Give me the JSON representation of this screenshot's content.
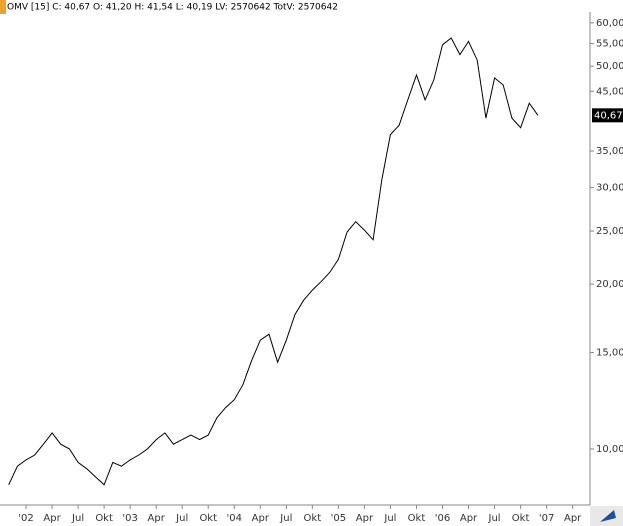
{
  "chart_data": {
    "type": "line",
    "title": "OMV [15] C: 40,67 O: 41,20 H: 41,54 L: 40,19 LV: 2570642 TotV: 2570642",
    "x": [
      "2001-11",
      "2001-12",
      "2002-01",
      "2002-02",
      "2002-03",
      "2002-04",
      "2002-05",
      "2002-06",
      "2002-07",
      "2002-08",
      "2002-09",
      "2002-10",
      "2002-11",
      "2002-12",
      "2003-01",
      "2003-02",
      "2003-03",
      "2003-04",
      "2003-05",
      "2003-06",
      "2003-07",
      "2003-08",
      "2003-09",
      "2003-10",
      "2003-11",
      "2003-12",
      "2004-01",
      "2004-02",
      "2004-03",
      "2004-04",
      "2004-05",
      "2004-06",
      "2004-07",
      "2004-08",
      "2004-09",
      "2004-10",
      "2004-11",
      "2004-12",
      "2005-01",
      "2005-02",
      "2005-03",
      "2005-04",
      "2005-05",
      "2005-06",
      "2005-07",
      "2005-08",
      "2005-09",
      "2005-10",
      "2005-11",
      "2005-12",
      "2006-01",
      "2006-02",
      "2006-03",
      "2006-04",
      "2006-05",
      "2006-06",
      "2006-07",
      "2006-08",
      "2006-09",
      "2006-10",
      "2006-11",
      "2006-12"
    ],
    "values": [
      8.6,
      9.3,
      9.55,
      9.75,
      10.2,
      10.7,
      10.2,
      10.0,
      9.45,
      9.2,
      8.9,
      8.6,
      9.45,
      9.3,
      9.55,
      9.75,
      10.0,
      10.4,
      10.7,
      10.2,
      10.4,
      10.6,
      10.4,
      10.6,
      11.4,
      11.9,
      12.3,
      13.1,
      14.5,
      15.8,
      16.2,
      14.4,
      15.8,
      17.6,
      18.7,
      19.5,
      20.2,
      21.0,
      22.2,
      24.9,
      26.0,
      25.1,
      24.1,
      31.0,
      37.5,
      39.0,
      43.4,
      48.2,
      43.4,
      47.2,
      54.7,
      56.3,
      52.5,
      55.5,
      51.3,
      40.2,
      47.6,
      46.2,
      40.2,
      38.6,
      42.8,
      40.67
    ],
    "color": "#000000",
    "log_scale": true,
    "grid": false,
    "ylim": [
      7.9,
      62.8
    ],
    "yticks": [
      {
        "value": 10,
        "label": "10,00"
      },
      {
        "value": 15,
        "label": "15,00"
      },
      {
        "value": 20,
        "label": "20,00"
      },
      {
        "value": 25,
        "label": "25,00"
      },
      {
        "value": 30,
        "label": "30,00"
      },
      {
        "value": 35,
        "label": "35,00"
      },
      {
        "value": 45,
        "label": "45,00"
      },
      {
        "value": 50,
        "label": "50,00"
      },
      {
        "value": 55,
        "label": "55,00"
      },
      {
        "value": 60,
        "label": "60,00"
      }
    ],
    "last_price": {
      "value": 40.67,
      "label": "40,67"
    },
    "xlim": [
      "2001-10",
      "2007-06"
    ],
    "xticks": [
      {
        "value": "2002-01",
        "label": "'02"
      },
      {
        "value": "2002-04",
        "label": "Apr"
      },
      {
        "value": "2002-07",
        "label": "Jul"
      },
      {
        "value": "2002-10",
        "label": "Okt"
      },
      {
        "value": "2003-01",
        "label": "'03"
      },
      {
        "value": "2003-04",
        "label": "Apr"
      },
      {
        "value": "2003-07",
        "label": "Jul"
      },
      {
        "value": "2003-10",
        "label": "Okt"
      },
      {
        "value": "2004-01",
        "label": "'04"
      },
      {
        "value": "2004-04",
        "label": "Apr"
      },
      {
        "value": "2004-07",
        "label": "Jul"
      },
      {
        "value": "2004-10",
        "label": "Okt"
      },
      {
        "value": "2005-01",
        "label": "'05"
      },
      {
        "value": "2005-04",
        "label": "Apr"
      },
      {
        "value": "2005-07",
        "label": "Jul"
      },
      {
        "value": "2005-10",
        "label": "Okt"
      },
      {
        "value": "2006-01",
        "label": "'06"
      },
      {
        "value": "2006-04",
        "label": "Apr"
      },
      {
        "value": "2006-07",
        "label": "Jul"
      },
      {
        "value": "2006-10",
        "label": "Okt"
      },
      {
        "value": "2007-01",
        "label": "'07"
      },
      {
        "value": "2007-04",
        "label": "Apr"
      }
    ]
  }
}
